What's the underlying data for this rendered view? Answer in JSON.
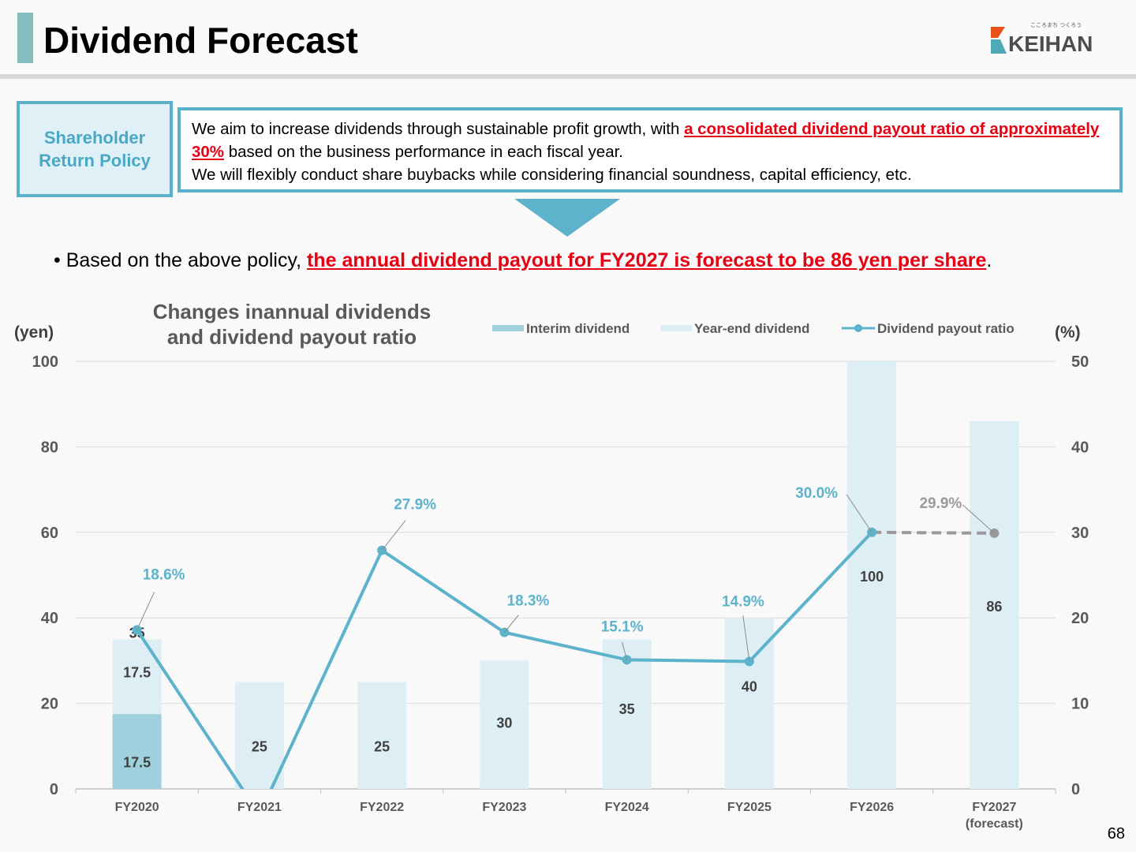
{
  "header": {
    "title": "Dividend Forecast",
    "logo_text": "KEIHAN",
    "logo_tagline": "こころまち つくろう"
  },
  "policy": {
    "label": "Shareholder\nReturn Policy",
    "line1_prefix": "We aim to increase dividends through sustainable profit growth, with ",
    "line1_highlight": "a consolidated dividend payout ratio of approximately 30%",
    "line1_suffix": " based on the business performance in each fiscal year.",
    "line2": "We will flexibly conduct share buybacks while considering financial soundness, capital efficiency, etc."
  },
  "bullet": {
    "prefix": "• Based on the above policy, ",
    "highlight": "the annual dividend payout for FY2027 is forecast to be 86 yen per share",
    "suffix": "."
  },
  "colors": {
    "accent": "#5db2cc",
    "highlight": "#e60012",
    "interim": "#9ed0de",
    "year_end": "#ddeff5",
    "forecast_line": "#9a9a9a"
  },
  "chart_data": {
    "type": "bar",
    "title": "Changes inannual dividends\nand dividend payout ratio",
    "ylabel_left": "(yen)",
    "ylabel_right": "(%)",
    "ylim_left": [
      0,
      100
    ],
    "ylim_right": [
      0,
      50
    ],
    "yticks_left": [
      "0",
      "20",
      "40",
      "60",
      "80",
      "100"
    ],
    "yticks_right": [
      "0",
      "10",
      "20",
      "30",
      "40",
      "50"
    ],
    "grid": true,
    "legend_position": "top-right",
    "categories": [
      "FY2020",
      "FY2021",
      "FY2022",
      "FY2023",
      "FY2024",
      "FY2025",
      "FY2026",
      "FY2027\n(forecast)"
    ],
    "series": [
      {
        "name": "Interim dividend",
        "type": "bar",
        "values": [
          17.5,
          null,
          null,
          null,
          null,
          null,
          null,
          null
        ],
        "labels": [
          "17.5",
          "",
          "",
          "",
          "",
          "",
          "",
          ""
        ]
      },
      {
        "name": "Year-end dividend",
        "type": "bar",
        "values": [
          17.5,
          25,
          25,
          30,
          35,
          40,
          100,
          86
        ],
        "labels": [
          "17.5",
          "25",
          "25",
          "30",
          "35",
          "40",
          "100",
          "86"
        ]
      },
      {
        "name": "Dividend payout ratio",
        "type": "line",
        "axis": "right",
        "values": [
          18.6,
          -3.0,
          27.9,
          18.3,
          15.1,
          14.9,
          30.0,
          29.9
        ],
        "labels": [
          "18.6%",
          "",
          "27.9%",
          "18.3%",
          "15.1%",
          "14.9%",
          "30.0%",
          "29.9%"
        ]
      }
    ],
    "totals": [
      "35",
      "",
      "",
      "",
      "",
      "",
      "",
      ""
    ]
  },
  "page_number": "68"
}
